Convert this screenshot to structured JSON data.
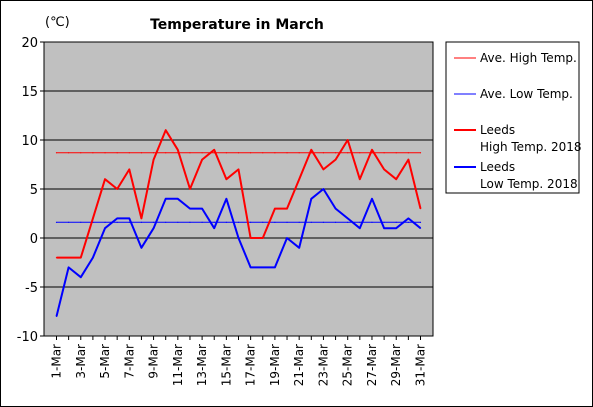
{
  "chart_data": {
    "type": "line",
    "title": "Temperature in March",
    "unit_label": "(℃)",
    "ylim": [
      -10,
      20
    ],
    "yticks": [
      20,
      15,
      10,
      5,
      0,
      -5,
      -10
    ],
    "grid": true,
    "plot_background": "#c0c0c0",
    "legend_position": "right",
    "x": [
      "1-Mar",
      "2-Mar",
      "3-Mar",
      "4-Mar",
      "5-Mar",
      "6-Mar",
      "7-Mar",
      "8-Mar",
      "9-Mar",
      "10-Mar",
      "11-Mar",
      "12-Mar",
      "13-Mar",
      "14-Mar",
      "15-Mar",
      "16-Mar",
      "17-Mar",
      "18-Mar",
      "19-Mar",
      "20-Mar",
      "21-Mar",
      "22-Mar",
      "23-Mar",
      "24-Mar",
      "25-Mar",
      "26-Mar",
      "27-Mar",
      "28-Mar",
      "29-Mar",
      "30-Mar",
      "31-Mar"
    ],
    "xtick_labels": [
      "1-Mar",
      "3-Mar",
      "5-Mar",
      "7-Mar",
      "9-Mar",
      "11-Mar",
      "13-Mar",
      "15-Mar",
      "17-Mar",
      "19-Mar",
      "21-Mar",
      "23-Mar",
      "25-Mar",
      "27-Mar",
      "29-Mar",
      "31-Mar"
    ],
    "series": [
      {
        "name": "Ave. High Temp.",
        "color": "#ff0000",
        "width": 1,
        "values": [
          8.7,
          8.7,
          8.7,
          8.7,
          8.7,
          8.7,
          8.7,
          8.7,
          8.7,
          8.7,
          8.7,
          8.7,
          8.7,
          8.7,
          8.7,
          8.7,
          8.7,
          8.7,
          8.7,
          8.7,
          8.7,
          8.7,
          8.7,
          8.7,
          8.7,
          8.7,
          8.7,
          8.7,
          8.7,
          8.7,
          8.7
        ]
      },
      {
        "name": "Ave. Low Temp.",
        "color": "#0000ff",
        "width": 1,
        "values": [
          1.6,
          1.6,
          1.6,
          1.6,
          1.6,
          1.6,
          1.6,
          1.6,
          1.6,
          1.6,
          1.6,
          1.6,
          1.6,
          1.6,
          1.6,
          1.6,
          1.6,
          1.6,
          1.6,
          1.6,
          1.6,
          1.6,
          1.6,
          1.6,
          1.6,
          1.6,
          1.6,
          1.6,
          1.6,
          1.6,
          1.6
        ]
      },
      {
        "name": "Leeds\nHigh Temp. 2018",
        "color": "#ff0000",
        "width": 2,
        "values": [
          -2,
          -2,
          -2,
          2,
          6,
          5,
          7,
          2,
          8,
          11,
          9,
          5,
          8,
          9,
          6,
          7,
          0,
          0,
          3,
          3,
          6,
          9,
          7,
          8,
          10,
          6,
          9,
          7,
          6,
          8,
          3
        ]
      },
      {
        "name": "Leeds\nLow Temp. 2018",
        "color": "#0000ff",
        "width": 2,
        "values": [
          -8,
          -3,
          -4,
          -2,
          1,
          2,
          2,
          -1,
          1,
          4,
          4,
          3,
          3,
          1,
          4,
          0,
          -3,
          -3,
          -3,
          0,
          -1,
          4,
          5,
          3,
          2,
          1,
          4,
          1,
          1,
          2,
          1
        ]
      }
    ]
  }
}
